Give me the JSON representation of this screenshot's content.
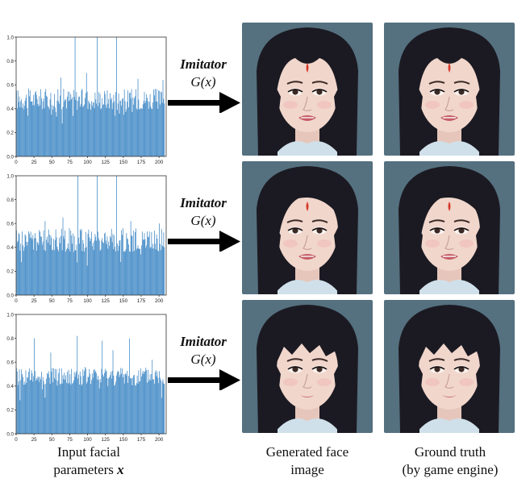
{
  "colors": {
    "bar": "#3f88c5",
    "axis": "#333333",
    "arrow": "#000000",
    "hair": "#1b1a22",
    "skin": "#f1d6cc",
    "background_face": "#55707f",
    "collar": "#cfe0ea"
  },
  "rows": [
    {
      "arrow": {
        "label_top": "Imitator",
        "label_mid": "G(x)"
      }
    },
    {
      "arrow": {
        "label_top": "Imitator",
        "label_mid": "G(x)"
      }
    },
    {
      "arrow": {
        "label_top": "Imitator",
        "label_mid": "G(x)"
      }
    }
  ],
  "captions": {
    "input_line1": "Input facial",
    "input_line2": "parameters",
    "input_symbol": "x",
    "generated_line1": "Generated face",
    "generated_line2": "image",
    "truth_line1": "Ground truth",
    "truth_line2": "(by game engine)"
  },
  "chart_data": [
    {
      "type": "bar",
      "xlim": [
        0,
        210
      ],
      "ylim": [
        0,
        1.0
      ],
      "xticks": [
        "0",
        "25",
        "50",
        "75",
        "100",
        "125",
        "150",
        "175",
        "200"
      ],
      "yticks": [
        "0.0",
        "0.2",
        "0.4",
        "0.6",
        "0.8",
        "1.0"
      ],
      "n_bars": 208,
      "base_level": 0.48,
      "spread": 0.09,
      "peaks": [
        [
          82,
          1.0
        ],
        [
          113,
          1.0
        ],
        [
          140,
          1.0
        ],
        [
          98,
          0.7
        ],
        [
          62,
          0.66
        ],
        [
          170,
          0.65
        ],
        [
          205,
          0.64
        ]
      ]
    },
    {
      "type": "bar",
      "xlim": [
        0,
        210
      ],
      "ylim": [
        0,
        1.0
      ],
      "xticks": [
        "0",
        "25",
        "50",
        "75",
        "100",
        "125",
        "150",
        "175",
        "200"
      ],
      "yticks": [
        "0.0",
        "0.2",
        "0.4",
        "0.6",
        "0.8",
        "1.0"
      ],
      "n_bars": 208,
      "base_level": 0.46,
      "spread": 0.1,
      "peaks": [
        [
          86,
          1.0
        ],
        [
          113,
          1.0
        ],
        [
          140,
          1.0
        ],
        [
          65,
          0.65
        ],
        [
          40,
          0.62
        ],
        [
          160,
          0.62
        ],
        [
          200,
          0.6
        ]
      ]
    },
    {
      "type": "bar",
      "xlim": [
        0,
        210
      ],
      "ylim": [
        0,
        1.0
      ],
      "xticks": [
        "0",
        "25",
        "50",
        "75",
        "100",
        "125",
        "150",
        "175",
        "200"
      ],
      "yticks": [
        "0.0",
        "0.2",
        "0.4",
        "0.6",
        "0.8",
        "1.0"
      ],
      "n_bars": 208,
      "base_level": 0.48,
      "spread": 0.08,
      "peaks": [
        [
          25,
          0.8
        ],
        [
          85,
          0.82
        ],
        [
          120,
          0.78
        ],
        [
          158,
          0.8
        ],
        [
          48,
          0.68
        ],
        [
          135,
          0.7
        ],
        [
          190,
          0.62
        ]
      ]
    }
  ]
}
